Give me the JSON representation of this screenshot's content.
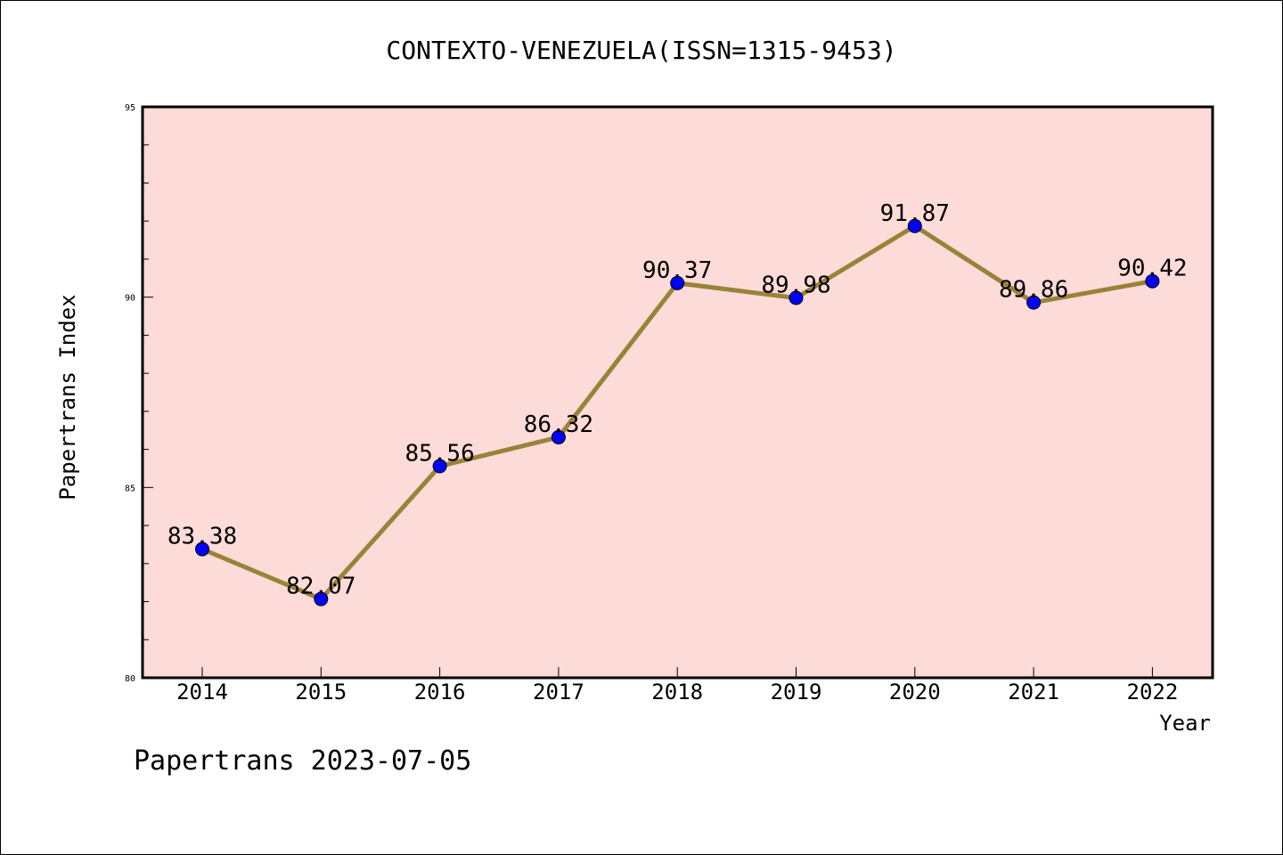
{
  "chart_data": {
    "type": "line",
    "title": "CONTEXTO-VENEZUELA(ISSN=1315-9453)",
    "xlabel": "Year",
    "ylabel": "Papertrans Index",
    "footer": "Papertrans 2023-07-05",
    "categories": [
      "2014",
      "2015",
      "2016",
      "2017",
      "2018",
      "2019",
      "2020",
      "2021",
      "2022"
    ],
    "values": [
      83.38,
      82.07,
      85.56,
      86.32,
      90.37,
      89.98,
      91.87,
      89.86,
      90.42
    ],
    "data_labels": [
      "83.38",
      "82.07",
      "85.56",
      "86.32",
      "90.37",
      "89.98",
      "91.87",
      "89.86",
      "90.42"
    ],
    "ylim": [
      80,
      95
    ],
    "yticks": [
      80,
      85,
      90,
      95
    ],
    "ytick_labels": [
      "80",
      "85",
      "90",
      "95"
    ],
    "grid": false,
    "colors": {
      "plot_background": "#fddbd8",
      "line": "#9a8238",
      "marker": "#0000ff"
    }
  }
}
